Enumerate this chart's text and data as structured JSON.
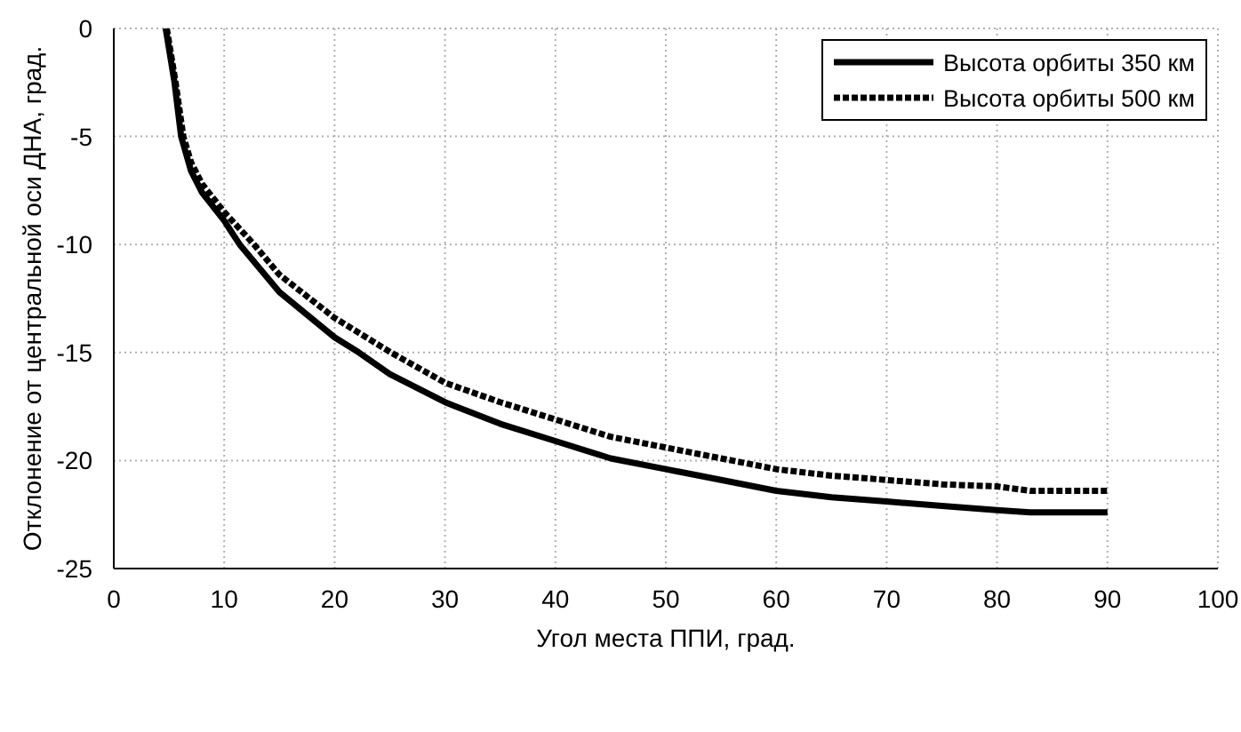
{
  "chart_data": {
    "type": "line",
    "xlabel": "Угол места ППИ, град.",
    "ylabel": "Отклонение от центральной оси ДНА, град.",
    "xlim": [
      0,
      100
    ],
    "xticks": [
      0,
      10,
      20,
      30,
      40,
      50,
      60,
      70,
      80,
      90,
      100
    ],
    "ylim": [
      -25,
      0
    ],
    "yticks": [
      -25,
      -20,
      -15,
      -10,
      -5,
      0
    ],
    "grid": true,
    "legend": "top right",
    "marker": "none",
    "series": [
      {
        "name": "Высота орбиты 350 км",
        "color": "#000000",
        "line_style": "solid",
        "x": [
          4.7,
          5.5,
          6.1,
          7,
          8,
          10,
          11.4,
          15,
          20,
          22.2,
          25,
          30,
          35,
          40,
          45,
          50,
          55,
          60,
          65,
          70,
          75,
          80,
          83,
          90
        ],
        "values": [
          0,
          -2.5,
          -5,
          -6.6,
          -7.6,
          -8.9,
          -10,
          -12.2,
          -14.3,
          -15,
          -16,
          -17.3,
          -18.3,
          -19.1,
          -19.9,
          -20.4,
          -20.9,
          -21.4,
          -21.7,
          -21.9,
          -22.1,
          -22.3,
          -22.4,
          -22.4
        ]
      },
      {
        "name": "Высота орбиты 500 км",
        "color": "#000000",
        "line_style": "dotted",
        "x": [
          4.8,
          5.6,
          6.3,
          7,
          8,
          10,
          12.7,
          15,
          20,
          25.1,
          30,
          35,
          40,
          45,
          50,
          55,
          60,
          65,
          70,
          75,
          80,
          83,
          90
        ],
        "values": [
          0,
          -2.5,
          -5,
          -6.2,
          -7.2,
          -8.5,
          -10,
          -11.4,
          -13.4,
          -15,
          -16.4,
          -17.3,
          -18.1,
          -18.9,
          -19.4,
          -19.9,
          -20.4,
          -20.7,
          -20.9,
          -21.1,
          -21.2,
          -21.4,
          -21.4
        ]
      }
    ]
  }
}
